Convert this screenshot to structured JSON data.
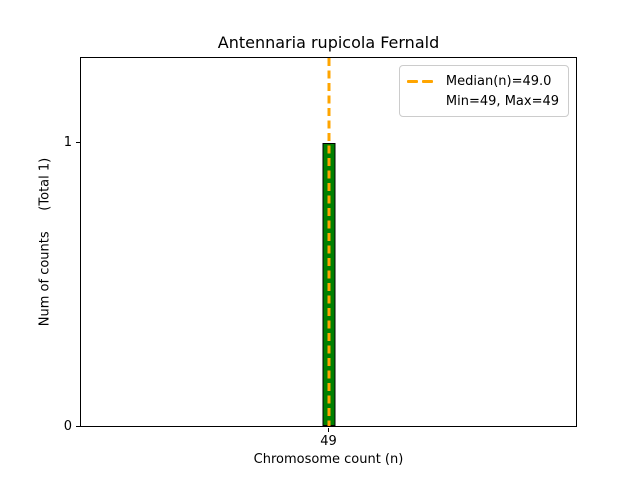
{
  "chart_data": {
    "type": "bar",
    "title": "Antennaria rupicola Fernald",
    "xlabel": "Chromosome count (n)",
    "ylabel": "Num of counts     (Total 1)",
    "categories": [
      "49"
    ],
    "values": [
      1
    ],
    "total_counts": 1,
    "x_ticks": [
      "49"
    ],
    "y_ticks": [
      "0",
      "1"
    ],
    "ylim": [
      0,
      1.3
    ],
    "grid": false,
    "bar_color": "#008000",
    "bar_edge_color": "#000000",
    "median_line": {
      "value": 49.0,
      "color": "#FFA500",
      "style": "dashed"
    },
    "legend": {
      "position": "upper right",
      "entries": [
        {
          "label": "Median(n)=49.0",
          "marker": "orange-dashed-line"
        },
        {
          "label": "Min=49, Max=49",
          "marker": "none"
        }
      ]
    }
  }
}
